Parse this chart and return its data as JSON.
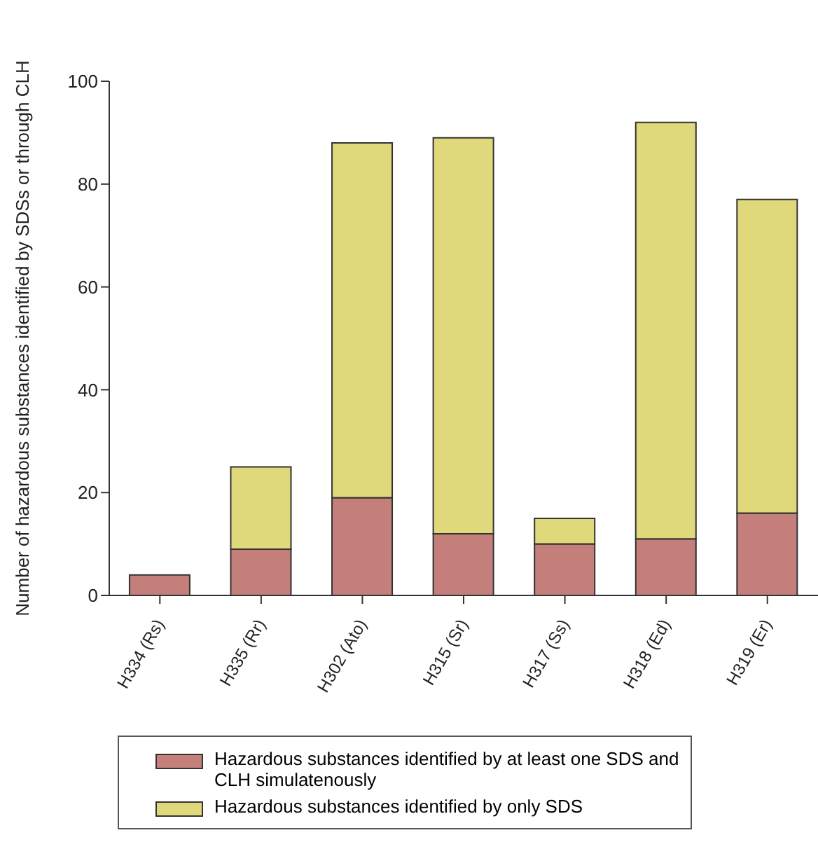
{
  "chart_data": {
    "type": "bar",
    "ylabel": "Number of hazardous substances identified by SDSs or through CLH",
    "categories": [
      "H334 (Rs)",
      "H335 (Rr)",
      "H302 (Ato)",
      "H315 (Sr)",
      "H317 (Ss)",
      "H318 (Ed)",
      "H319 (Er)"
    ],
    "series": [
      {
        "name": "Hazardous substances identified by at least one SDS and CLH simulatenously",
        "color": "#c47f7b",
        "values": [
          4,
          9,
          19,
          12,
          10,
          11,
          16
        ]
      },
      {
        "name": "Hazardous substances identified by only SDS",
        "color": "#e0d97c",
        "values": [
          0,
          16,
          69,
          77,
          5,
          81,
          61
        ]
      }
    ],
    "stacked": true,
    "ylim": [
      0,
      100
    ],
    "yticks": [
      0,
      20,
      40,
      60,
      80,
      100
    ],
    "grid": false,
    "legend": "bottom"
  }
}
